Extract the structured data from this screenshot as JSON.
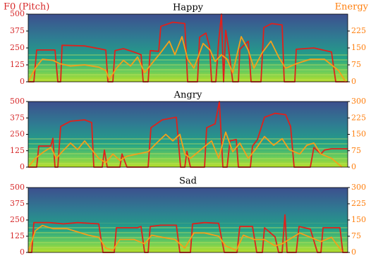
{
  "chart_data": [
    {
      "type": "line",
      "title": "Happy",
      "xlim": [
        40,
        493
      ],
      "ylim": [
        0,
        500
      ],
      "yticks": [
        0,
        125,
        250,
        375,
        500
      ],
      "y2lim": [
        0,
        300
      ],
      "y2ticks": [
        0,
        75,
        150,
        225
      ],
      "series": [
        {
          "name": "F0 (Pitch)",
          "color": "#e0201b",
          "x": [
            40,
            48,
            52,
            78,
            82,
            86,
            88,
            120,
            150,
            153,
            160,
            163,
            175,
            190,
            200,
            203,
            210,
            213,
            225,
            228,
            245,
            262,
            266,
            280,
            283,
            292,
            297,
            300,
            306,
            310,
            314,
            317,
            320,
            324,
            330,
            338,
            340,
            352,
            356,
            370,
            374,
            385,
            400,
            403,
            418,
            420,
            445,
            470,
            476,
            493
          ],
          "values": [
            0,
            0,
            235,
            235,
            0,
            0,
            270,
            265,
            235,
            0,
            0,
            230,
            245,
            220,
            200,
            0,
            0,
            230,
            225,
            410,
            440,
            430,
            0,
            0,
            330,
            360,
            260,
            0,
            0,
            300,
            500,
            0,
            380,
            250,
            0,
            0,
            240,
            300,
            0,
            0,
            400,
            430,
            420,
            0,
            0,
            240,
            250,
            220,
            0,
            0
          ]
        },
        {
          "name": "Energy",
          "color": "#f5a01a",
          "axis": "y2",
          "x": [
            40,
            50,
            60,
            75,
            85,
            100,
            120,
            140,
            150,
            155,
            165,
            175,
            185,
            195,
            205,
            215,
            228,
            240,
            248,
            258,
            266,
            275,
            288,
            298,
            305,
            314,
            322,
            330,
            342,
            352,
            360,
            372,
            384,
            395,
            405,
            420,
            440,
            460,
            480,
            490
          ],
          "values": [
            0,
            60,
            100,
            95,
            80,
            70,
            75,
            65,
            50,
            10,
            60,
            95,
            70,
            110,
            40,
            80,
            130,
            180,
            120,
            200,
            100,
            60,
            170,
            140,
            90,
            120,
            100,
            40,
            200,
            140,
            60,
            130,
            180,
            110,
            60,
            80,
            100,
            100,
            50,
            0
          ]
        }
      ]
    },
    {
      "type": "line",
      "title": "Angry",
      "xlim": [
        40,
        493
      ],
      "ylim": [
        0,
        500
      ],
      "yticks": [
        0,
        125,
        250,
        375,
        500
      ],
      "y2lim": [
        0,
        300
      ],
      "y2ticks": [
        0,
        75,
        150,
        225,
        300
      ],
      "series": [
        {
          "color": "#e0201b",
          "x": [
            40,
            52,
            55,
            72,
            75,
            78,
            82,
            86,
            100,
            120,
            130,
            133,
            145,
            148,
            152,
            170,
            173,
            180,
            210,
            214,
            230,
            250,
            256,
            262,
            265,
            270,
            290,
            293,
            305,
            311,
            316,
            322,
            326,
            335,
            338,
            355,
            358,
            365,
            375,
            390,
            405,
            412,
            417,
            440,
            445,
            455,
            460,
            470,
            493
          ],
          "values": [
            0,
            0,
            160,
            160,
            220,
            0,
            0,
            310,
            350,
            360,
            340,
            0,
            0,
            130,
            0,
            0,
            100,
            0,
            0,
            300,
            360,
            380,
            0,
            0,
            120,
            0,
            0,
            300,
            330,
            500,
            0,
            0,
            200,
            210,
            0,
            0,
            160,
            210,
            380,
            410,
            400,
            310,
            0,
            0,
            150,
            100,
            130,
            140,
            140
          ]
        },
        {
          "color": "#f5a01a",
          "axis": "y2",
          "x": [
            40,
            50,
            62,
            72,
            80,
            88,
            100,
            110,
            120,
            130,
            140,
            150,
            160,
            170,
            180,
            195,
            210,
            222,
            235,
            245,
            255,
            262,
            270,
            285,
            300,
            310,
            320,
            330,
            340,
            352,
            362,
            375,
            388,
            400,
            410,
            425,
            435,
            445,
            455,
            470,
            485
          ],
          "values": [
            0,
            40,
            70,
            90,
            40,
            70,
            110,
            80,
            120,
            80,
            40,
            20,
            60,
            30,
            50,
            60,
            70,
            110,
            150,
            120,
            150,
            60,
            40,
            80,
            120,
            40,
            160,
            70,
            110,
            40,
            80,
            140,
            100,
            130,
            80,
            60,
            100,
            110,
            60,
            40,
            0
          ]
        }
      ]
    },
    {
      "type": "line",
      "title": "Sad",
      "xlim": [
        40,
        493
      ],
      "ylim": [
        0,
        500
      ],
      "yticks": [
        0,
        125,
        250,
        375,
        500
      ],
      "y2lim": [
        0,
        300
      ],
      "y2ticks": [
        0,
        75,
        150,
        225,
        300
      ],
      "series": [
        {
          "color": "#e0201b",
          "x": [
            40,
            45,
            48,
            70,
            90,
            110,
            140,
            146,
            162,
            165,
            195,
            200,
            205,
            210,
            213,
            228,
            250,
            255,
            270,
            273,
            290,
            310,
            318,
            336,
            340,
            358,
            364,
            372,
            375,
            390,
            395,
            400,
            404,
            407,
            420,
            424,
            440,
            450,
            455,
            458,
            482,
            486,
            493
          ],
          "values": [
            0,
            0,
            230,
            230,
            220,
            230,
            220,
            0,
            0,
            190,
            190,
            200,
            0,
            0,
            200,
            210,
            210,
            0,
            0,
            220,
            230,
            225,
            0,
            0,
            200,
            200,
            0,
            0,
            190,
            120,
            0,
            0,
            290,
            0,
            0,
            200,
            180,
            0,
            0,
            190,
            190,
            0,
            0
          ]
        },
        {
          "color": "#f5a01a",
          "axis": "y2",
          "x": [
            40,
            50,
            60,
            75,
            95,
            110,
            125,
            140,
            150,
            160,
            170,
            190,
            205,
            215,
            230,
            248,
            262,
            275,
            290,
            310,
            320,
            335,
            345,
            360,
            375,
            390,
            400,
            410,
            425,
            440,
            455,
            470,
            485
          ],
          "values": [
            0,
            100,
            125,
            110,
            110,
            95,
            80,
            70,
            20,
            10,
            60,
            60,
            40,
            80,
            70,
            60,
            20,
            90,
            90,
            75,
            30,
            10,
            80,
            60,
            60,
            30,
            40,
            60,
            90,
            70,
            50,
            70,
            5
          ]
        }
      ]
    }
  ]
}
